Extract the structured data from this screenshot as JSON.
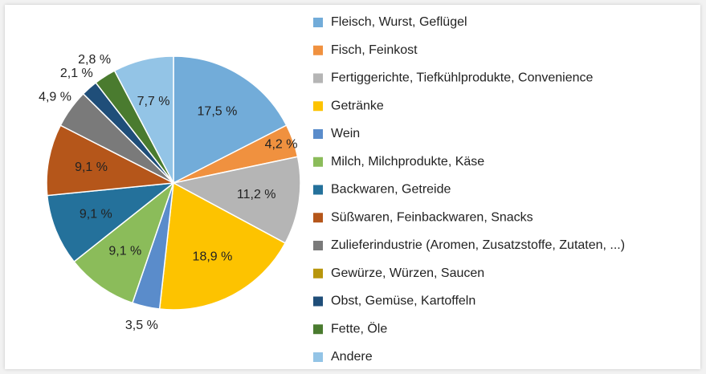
{
  "chart_data": {
    "type": "pie",
    "categories": [
      "Fleisch, Wurst, Geflügel",
      "Fisch, Feinkost",
      "Fertiggerichte, Tiefkühlprodukte, Convenience",
      "Getränke",
      "Wein",
      "Milch, Milchprodukte, Käse",
      "Backwaren, Getreide",
      "Süßwaren, Feinbackwaren, Snacks",
      "Zulieferindustrie (Aromen, Zusatzstoffe, Zutaten, ...)",
      "Gewürze, Würzen, Saucen",
      "Obst, Gemüse, Kartoffeln",
      "Fette, Öle",
      "Andere"
    ],
    "values": [
      17.5,
      4.2,
      11.2,
      18.9,
      3.5,
      9.1,
      9.1,
      9.1,
      4.9,
      0,
      2.1,
      2.8,
      7.7
    ],
    "value_labels": [
      "17,5 %",
      "4,2 %",
      "11,2 %",
      "18,9 %",
      "3,5 %",
      "9,1 %",
      "9,1 %",
      "9,1 %",
      "4,9 %",
      null,
      "2,1 %",
      "2,8 %",
      "7,7 %"
    ],
    "colors": [
      "#72acd9",
      "#f0913f",
      "#b5b5b5",
      "#fdc300",
      "#5a8ccb",
      "#8bbc5a",
      "#24719b",
      "#b5561a",
      "#7a7a7a",
      "#b8960c",
      "#1f4e79",
      "#4a7b2f",
      "#93c4e6"
    ],
    "legend": "right"
  }
}
